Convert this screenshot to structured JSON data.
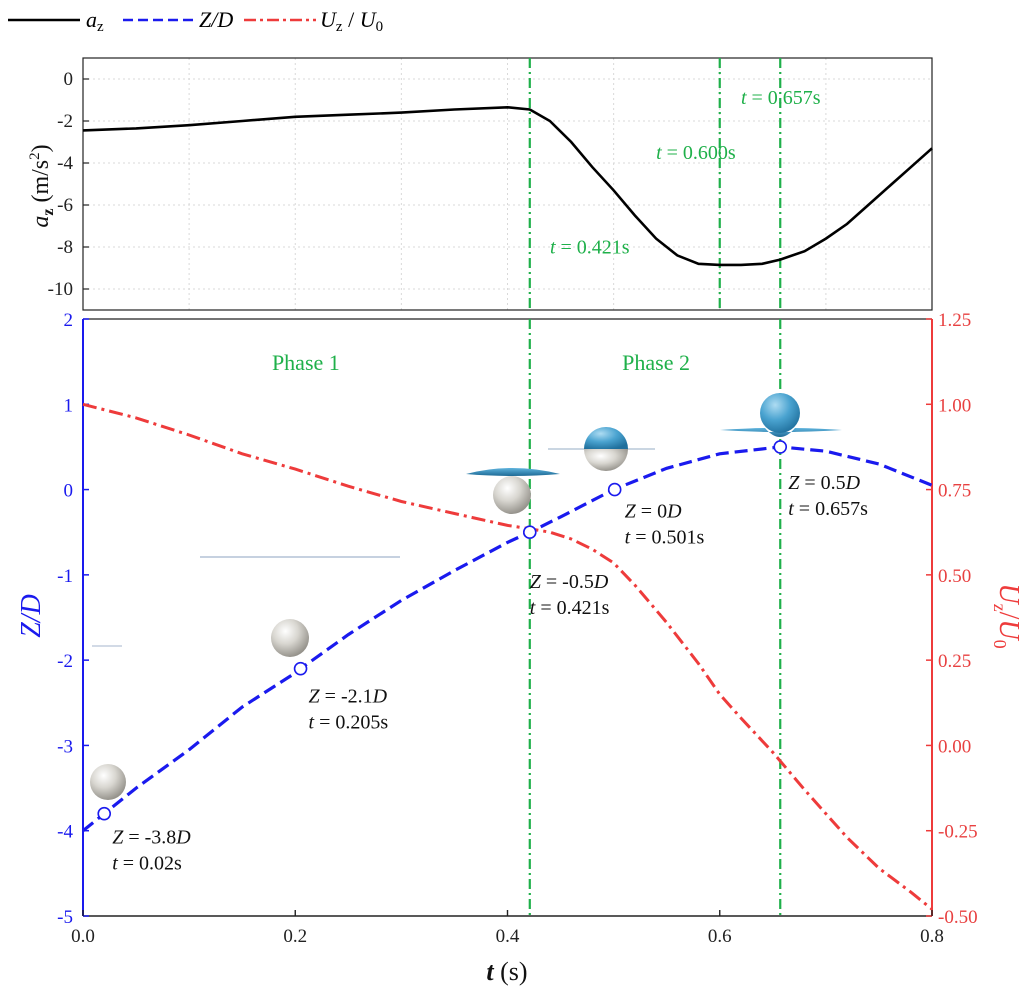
{
  "legend": [
    {
      "label": "a",
      "sub": "z",
      "italic": true,
      "color": "#000000",
      "dash": "solid"
    },
    {
      "label": "Z/D",
      "sub": "",
      "italic": true,
      "color": "#1a1aee",
      "dash": "dashed"
    },
    {
      "label": "U",
      "sub": "z",
      "sep": " / ",
      "label2": "U",
      "sub2": "0",
      "italic": true,
      "color": "#ee3b3b",
      "dash": "dashdot"
    }
  ],
  "colors": {
    "black": "#000000",
    "blue": "#1a1aee",
    "red": "#ee3b3b",
    "green": "#1fb04a"
  },
  "chart_data": [
    {
      "type": "line",
      "panel": "top",
      "ylabel": "a_z (m/s^2)",
      "ylabel_text": {
        "main": "a",
        "sub": "z",
        "unit_open": " (m/s",
        "sup": "2",
        "unit_close": ")"
      },
      "xlim": [
        0,
        0.8
      ],
      "ylim": [
        -11,
        1
      ],
      "yticks": [
        0,
        -2,
        -4,
        -6,
        -8,
        -10
      ],
      "grid": true,
      "series": [
        {
          "name": "a_z",
          "color": "#000000",
          "x": [
            0.0,
            0.05,
            0.1,
            0.15,
            0.2,
            0.25,
            0.3,
            0.35,
            0.4,
            0.421,
            0.44,
            0.46,
            0.48,
            0.5,
            0.52,
            0.54,
            0.56,
            0.58,
            0.6,
            0.62,
            0.64,
            0.657,
            0.68,
            0.7,
            0.72,
            0.74,
            0.76,
            0.78,
            0.8
          ],
          "y": [
            -2.45,
            -2.35,
            -2.2,
            -2.0,
            -1.8,
            -1.7,
            -1.6,
            -1.45,
            -1.35,
            -1.45,
            -2.0,
            -3.0,
            -4.2,
            -5.3,
            -6.5,
            -7.6,
            -8.4,
            -8.8,
            -8.85,
            -8.85,
            -8.8,
            -8.6,
            -8.2,
            -7.6,
            -6.9,
            -6.0,
            -5.1,
            -4.2,
            -3.3
          ]
        }
      ],
      "vlines": [
        0.421,
        0.6,
        0.657
      ],
      "annotations": [
        {
          "x": 0.44,
          "y": -8.3,
          "t": "t",
          "text": " = 0.421s"
        },
        {
          "x": 0.54,
          "y": -3.8,
          "t": "t",
          "text": " = 0.600s"
        },
        {
          "x": 0.62,
          "y": -1.2,
          "t": "t",
          "text": " = 0.657s"
        }
      ]
    },
    {
      "type": "line",
      "panel": "bottom",
      "xlabel_text": {
        "main": "t",
        "unit": " (s)"
      },
      "ylabel_left": "Z/D",
      "ylabel_right": {
        "main": "U",
        "sub": "z",
        "sep": "/",
        "main2": "U",
        "sub2": "0"
      },
      "xlim": [
        0,
        0.8
      ],
      "xticks": [
        0.0,
        0.2,
        0.4,
        0.6,
        0.8
      ],
      "ylim": [
        -5,
        2
      ],
      "yticks": [
        2,
        1,
        0,
        -1,
        -2,
        -3,
        -4,
        -5
      ],
      "y2lim": [
        -0.5,
        1.25
      ],
      "y2ticks": [
        1.25,
        1.0,
        0.75,
        0.5,
        0.25,
        0.0,
        -0.25,
        -0.5
      ],
      "series": [
        {
          "name": "Z/D",
          "color": "#1a1aee",
          "axis": "left",
          "x": [
            0.0,
            0.02,
            0.05,
            0.1,
            0.15,
            0.2,
            0.205,
            0.25,
            0.3,
            0.35,
            0.4,
            0.421,
            0.45,
            0.5,
            0.55,
            0.6,
            0.657,
            0.7,
            0.75,
            0.8
          ],
          "y": [
            -4.0,
            -3.8,
            -3.5,
            -3.05,
            -2.55,
            -2.15,
            -2.1,
            -1.7,
            -1.3,
            -0.95,
            -0.62,
            -0.5,
            -0.32,
            0.0,
            0.25,
            0.42,
            0.5,
            0.45,
            0.3,
            0.05
          ]
        },
        {
          "name": "U_z / U_0",
          "color": "#ee3b3b",
          "axis": "right",
          "x": [
            0.0,
            0.05,
            0.1,
            0.15,
            0.2,
            0.25,
            0.3,
            0.35,
            0.4,
            0.421,
            0.44,
            0.46,
            0.48,
            0.5,
            0.52,
            0.55,
            0.58,
            0.6,
            0.62,
            0.65,
            0.68,
            0.7,
            0.72,
            0.75,
            0.78,
            0.8
          ],
          "y": [
            1.0,
            0.96,
            0.91,
            0.855,
            0.81,
            0.76,
            0.715,
            0.68,
            0.645,
            0.635,
            0.625,
            0.605,
            0.575,
            0.535,
            0.47,
            0.36,
            0.24,
            0.15,
            0.08,
            -0.02,
            -0.13,
            -0.2,
            -0.27,
            -0.36,
            -0.43,
            -0.48
          ]
        }
      ],
      "points": [
        {
          "x": 0.02,
          "y": -3.8,
          "label": "-3.8",
          "t": "0.02s"
        },
        {
          "x": 0.205,
          "y": -2.1,
          "label": "-2.1",
          "t": "0.205s"
        },
        {
          "x": 0.421,
          "y": -0.5,
          "label": "-0.5",
          "t": "0.421s"
        },
        {
          "x": 0.501,
          "y": 0.0,
          "label": "0",
          "t": "0.501s"
        },
        {
          "x": 0.657,
          "y": 0.5,
          "label": "0.5",
          "t": "0.657s"
        }
      ],
      "phases": [
        "Phase 1",
        "Phase 2"
      ],
      "vlines": [
        0.421,
        0.657
      ]
    }
  ]
}
